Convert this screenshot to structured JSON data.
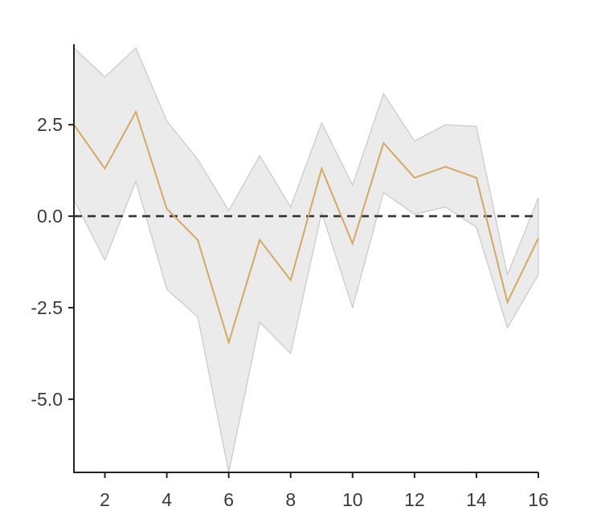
{
  "chart_data": {
    "type": "line",
    "title": "",
    "xlabel": "",
    "ylabel": "",
    "xlim": [
      1,
      16
    ],
    "ylim": [
      -7,
      4.7
    ],
    "x_ticks": [
      2,
      4,
      6,
      8,
      10,
      12,
      14,
      16
    ],
    "x_tick_labels": [
      "2",
      "4",
      "6",
      "8",
      "10",
      "12",
      "14",
      "16"
    ],
    "y_ticks": [
      2.5,
      0.0,
      -2.5,
      -5.0
    ],
    "y_tick_labels": [
      "2.5",
      "0.0",
      "-2.5",
      "-5.0"
    ],
    "grid": false,
    "legend": "none",
    "reference_line": {
      "y": 0,
      "style": "dashed",
      "color": "#333333"
    },
    "series": [
      {
        "x": [
          1,
          2,
          3,
          4,
          5,
          6,
          7,
          8,
          9,
          10,
          11,
          12,
          13,
          14,
          15,
          16
        ],
        "values": [
          2.5,
          1.3,
          2.85,
          0.2,
          -0.65,
          -3.45,
          -0.65,
          -1.75,
          1.3,
          -0.75,
          2.0,
          1.05,
          1.35,
          1.05,
          -2.35,
          -0.6
        ],
        "upper": [
          4.6,
          3.8,
          4.6,
          2.6,
          1.55,
          0.15,
          1.65,
          0.25,
          2.55,
          0.85,
          3.35,
          2.05,
          2.5,
          2.45,
          -1.6,
          0.5
        ],
        "lower": [
          0.45,
          -1.2,
          0.95,
          -2.0,
          -2.75,
          -7.0,
          -2.9,
          -3.75,
          0.1,
          -2.5,
          0.65,
          0.05,
          0.25,
          -0.3,
          -3.05,
          -1.6
        ],
        "color": "#d4a865",
        "band_color": "#ebebeb",
        "band_edge_color": "#c8c8c8"
      }
    ]
  }
}
